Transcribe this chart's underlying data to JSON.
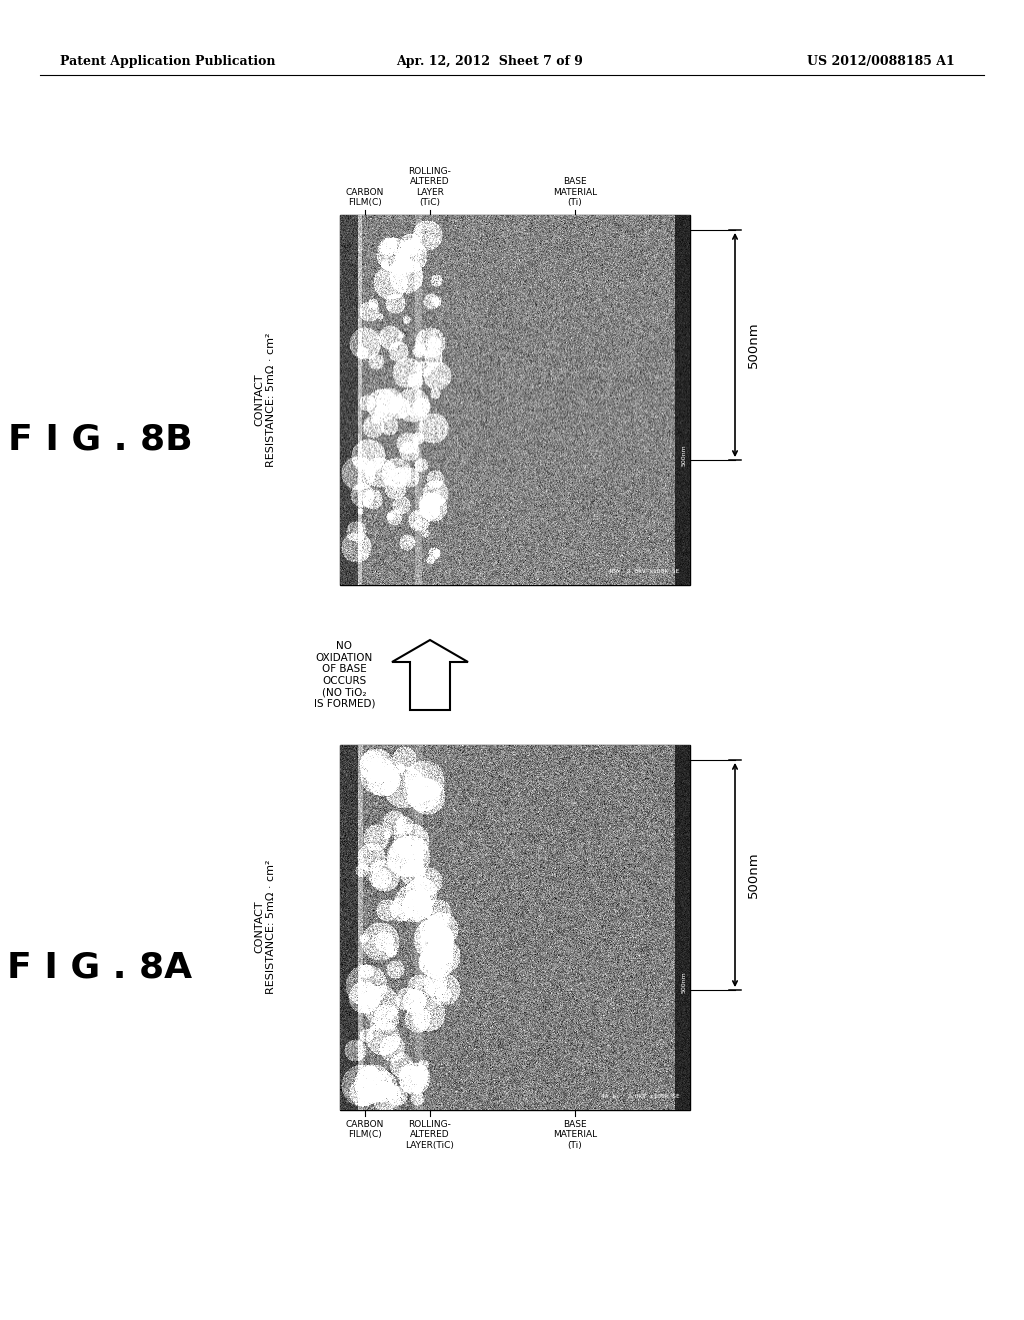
{
  "header_left": "Patent Application Publication",
  "header_center": "Apr. 12, 2012  Sheet 7 of 9",
  "header_right": "US 2012/0088185 A1",
  "fig8b_label": "F I G . 8B",
  "fig8a_label": "F I G . 8A",
  "contact_resistance": "CONTACT\nRESISTANCE: 5mΩ · cm²",
  "scale_label": "500nm",
  "arrow_text": "NO\nOXIDATION\nOF BASE\nOCCURS\n(NO TiO₂\nIS FORMED)",
  "8b_labels_top": [
    "CARBON\nFILM(C)",
    "ROLLING-\nALTERED\nLAYER\n(TiC)",
    "BASE\nMATERIAL\n(Ti)"
  ],
  "8a_labels_bottom": [
    "CARBON\nFILM(C)",
    "ROLLING-\nALTERED\nLAYER(TiC)",
    "BASE\nMATERIAL\n(Ti)"
  ],
  "sem_info_8b": "4Bc  2.0kV x100k SE",
  "sem_info_8a": "4A-bc  2.0kV x100k SE",
  "scale_bar_text": "500nm",
  "bg_color": "#ffffff",
  "text_color": "#000000",
  "header_fontsize": 9,
  "fig_label_fontsize": 26,
  "annotation_fontsize": 7,
  "contact_fontsize": 8
}
